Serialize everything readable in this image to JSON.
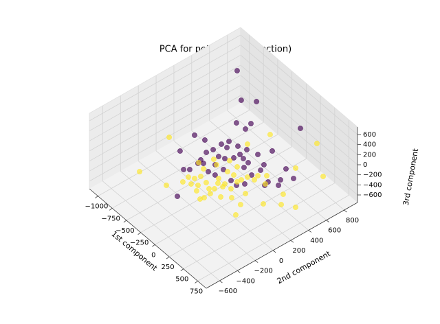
{
  "chart_data": {
    "type": "scatter3d",
    "title": "PCA for pets (edge detection)",
    "xlabel": "1st component",
    "ylabel": "2nd component",
    "zlabel": "3rd component",
    "xlim": [
      -1150,
      900
    ],
    "ylim": [
      -750,
      950
    ],
    "zlim": [
      -750,
      750
    ],
    "xticks": [
      {
        "value": -1000,
        "label": "−1000"
      },
      {
        "value": -750,
        "label": "−750"
      },
      {
        "value": -500,
        "label": "−500"
      },
      {
        "value": -250,
        "label": "−250"
      },
      0,
      250,
      500,
      750
    ],
    "yticks": [
      {
        "value": -600,
        "label": "−600"
      },
      {
        "value": -400,
        "label": "−400"
      },
      {
        "value": -200,
        "label": "−200"
      },
      0,
      200,
      400,
      600,
      800
    ],
    "zticks": [
      {
        "value": -600,
        "label": "−600"
      },
      {
        "value": -400,
        "label": "−400"
      },
      {
        "value": -200,
        "label": "−200"
      },
      0,
      200,
      400,
      600
    ],
    "grid": true,
    "series": [
      {
        "color": "#440154",
        "x": [
          -1106,
          -713,
          -589,
          -356,
          -327,
          -466,
          -608,
          -476,
          50,
          132,
          -309,
          -290,
          -168,
          -299,
          -313,
          -514,
          -107,
          -53,
          23,
          -63,
          74,
          -259,
          -98,
          19,
          -61,
          138,
          108,
          285,
          288,
          244,
          -217,
          -260,
          -197,
          306,
          347,
          208,
          547,
          600,
          449,
          621,
          485,
          27,
          29,
          -176,
          -236,
          -52,
          -228,
          504
        ],
        "y": [
          883,
          677,
          769,
          557,
          477,
          465,
          85,
          116,
          853,
          484,
          195,
          268,
          290,
          96,
          28,
          -138,
          104,
          170,
          229,
          323,
          359,
          -69,
          -10,
          8,
          -111,
          163,
          229,
          154,
          253,
          319,
          -220,
          -261,
          -78,
          -29,
          37,
          -28,
          311,
          254,
          435,
          410,
          211,
          -515,
          -92,
          78,
          -115,
          239,
          205,
          161
        ],
        "z": [
          0,
          0,
          0,
          0,
          0,
          0,
          0,
          0,
          0,
          0,
          0,
          0,
          0,
          0,
          0,
          0,
          0,
          0,
          0,
          0,
          0,
          0,
          0,
          0,
          0,
          0,
          0,
          0,
          0,
          0,
          0,
          0,
          0,
          0,
          0,
          0,
          0,
          0,
          0,
          0,
          0,
          0,
          0,
          0,
          0,
          0,
          0,
          0
        ]
      },
      {
        "color": "#fde725",
        "x": [
          -760,
          -543,
          -86,
          352,
          -126,
          -239,
          -129,
          -176,
          96,
          227,
          -73,
          -29,
          36,
          60,
          225,
          220,
          -186,
          272,
          74,
          159,
          268,
          471,
          425,
          339,
          572,
          723,
          857,
          744,
          805,
          508,
          803,
          399,
          281,
          491,
          666,
          232,
          156,
          -113,
          -133,
          -55,
          150,
          207,
          -88,
          -48,
          194,
          94,
          337,
          363,
          310,
          82
        ],
        "y": [
          -103,
          -575,
          600,
          845,
          371,
          -105,
          -121,
          24,
          -96,
          -133,
          -258,
          -325,
          -289,
          -212,
          -271,
          -384,
          -502,
          47,
          19,
          34,
          3,
          -34,
          -160,
          -228,
          -154,
          5,
          120,
          215,
          315,
          506,
          626,
          251,
          110,
          176,
          -268,
          -345,
          -242,
          -364,
          -289,
          -200,
          -138,
          -97,
          -1,
          120,
          -205,
          -342,
          191,
          135,
          -94,
          122
        ],
        "z": [
          0,
          0,
          0,
          0,
          0,
          0,
          0,
          0,
          0,
          0,
          0,
          0,
          0,
          0,
          0,
          0,
          0,
          0,
          0,
          0,
          0,
          0,
          0,
          0,
          0,
          0,
          0,
          0,
          -300,
          0,
          0,
          0,
          0,
          0,
          0,
          0,
          0,
          0,
          0,
          0,
          0,
          0,
          0,
          0,
          0,
          0,
          0,
          0,
          0,
          0
        ]
      }
    ]
  }
}
